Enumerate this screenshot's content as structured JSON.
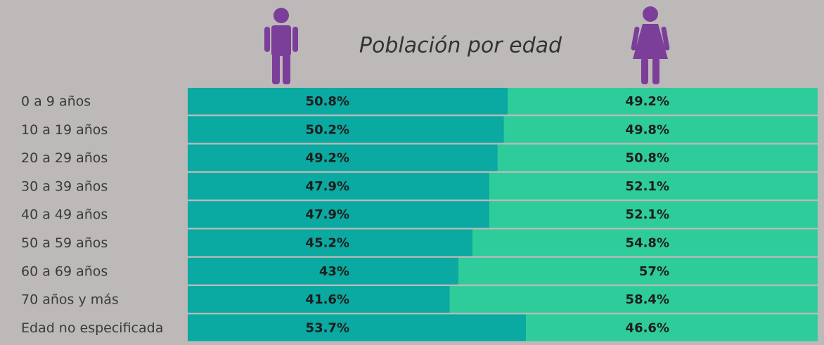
{
  "chart_data": {
    "type": "stacked-bar-100",
    "title": "Población por edad",
    "categories": [
      "0 a 9 años",
      "10 a 19 años",
      "20 a 29 años",
      "30 a 39 años",
      "40 a 49 años",
      "50 a 59 años",
      "60 a 69 años",
      "70 años y más",
      "Edad no especificada"
    ],
    "series": [
      {
        "color": "#0aa9a1",
        "values": [
          50.8,
          50.2,
          49.2,
          47.9,
          47.9,
          45.2,
          43,
          41.6,
          53.7
        ],
        "value_labels": [
          "50.8%",
          "50.2%",
          "49.2%",
          "47.9%",
          "47.9%",
          "45.2%",
          "43%",
          "41.6%",
          "53.7%"
        ]
      },
      {
        "color": "#2fcc9b",
        "values": [
          49.2,
          49.8,
          50.8,
          52.1,
          52.1,
          54.8,
          57,
          58.4,
          46.6
        ],
        "value_labels": [
          "49.2%",
          "49.8%",
          "50.8%",
          "52.1%",
          "52.1%",
          "54.8%",
          "57%",
          "58.4%",
          "46.6%"
        ]
      }
    ],
    "xlim": [
      0,
      100
    ]
  }
}
